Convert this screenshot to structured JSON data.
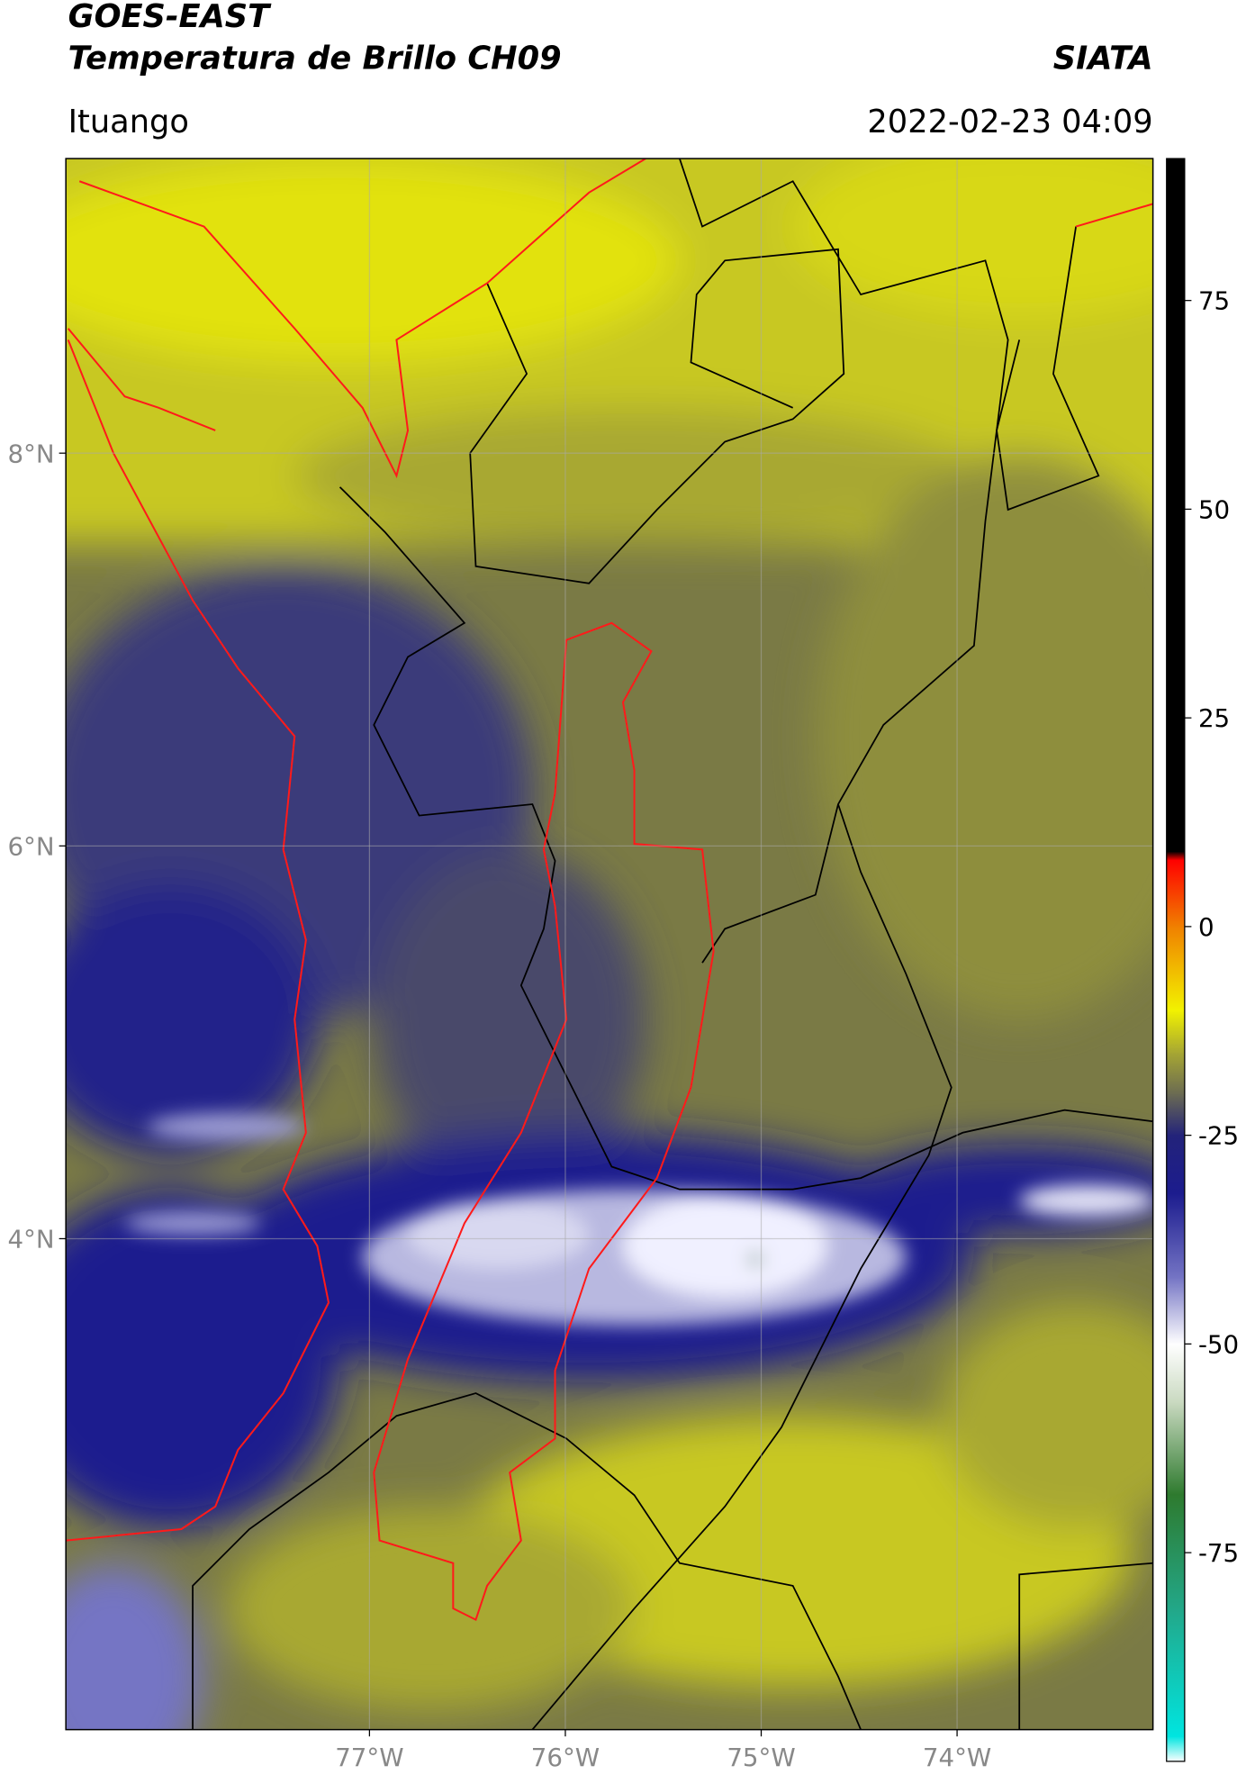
{
  "header": {
    "title": "GOES-EAST",
    "subtitle": "Temperatura de Brillo CH09",
    "org": "SIATA",
    "place": "Ituango",
    "datetime": "2022-02-23 04:09"
  },
  "map": {
    "lat_range": [
      1.5,
      9.5
    ],
    "lon_range": [
      -78.55,
      -73.0
    ],
    "grid": true,
    "lat_ticks": [
      {
        "value": 8,
        "label": "8°N"
      },
      {
        "value": 6,
        "label": "6°N"
      },
      {
        "value": 4,
        "label": "4°N"
      }
    ],
    "lon_ticks": [
      {
        "value": -77,
        "label": "77°W"
      },
      {
        "value": -76,
        "label": "76°W"
      },
      {
        "value": -75,
        "label": "75°W"
      },
      {
        "value": -74,
        "label": "74°W"
      }
    ]
  },
  "colorbar": {
    "range": [
      -100,
      92
    ],
    "ticks": [
      75,
      50,
      25,
      0,
      -25,
      -50,
      -75
    ],
    "stops": [
      {
        "value": -100,
        "color": "#ffffff"
      },
      {
        "value": -97,
        "color": "#00e5e0"
      },
      {
        "value": -82,
        "color": "#22a88a"
      },
      {
        "value": -68,
        "color": "#2e7a2e"
      },
      {
        "value": -57,
        "color": "#c9d9c0"
      },
      {
        "value": -50,
        "color": "#ffffff"
      },
      {
        "value": -42,
        "color": "#7474c4"
      },
      {
        "value": -32,
        "color": "#1c1c8e"
      },
      {
        "value": -25,
        "color": "#23237a"
      },
      {
        "value": -20,
        "color": "#6b6b52"
      },
      {
        "value": -15,
        "color": "#a8a832"
      },
      {
        "value": -10,
        "color": "#f2f200"
      },
      {
        "value": 0,
        "color": "#f08000"
      },
      {
        "value": 8,
        "color": "#ff0000"
      },
      {
        "value": 9,
        "color": "#000000"
      },
      {
        "value": 92,
        "color": "#000000"
      }
    ]
  }
}
